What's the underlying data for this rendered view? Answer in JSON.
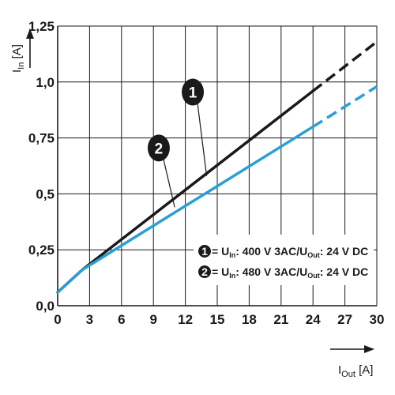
{
  "chart_data": {
    "type": "line",
    "xlabel": {
      "main": "I",
      "sub": "Out",
      "unit": " [A]"
    },
    "ylabel": {
      "main": "I",
      "sub": "In",
      "unit": " [A]"
    },
    "xlim": [
      0,
      30
    ],
    "ylim": [
      0,
      1.25
    ],
    "xticks": [
      0,
      3,
      6,
      9,
      12,
      15,
      18,
      21,
      24,
      27,
      30
    ],
    "xtick_labels": [
      "0",
      "3",
      "6",
      "9",
      "12",
      "15",
      "18",
      "21",
      "24",
      "27",
      "30"
    ],
    "yticks": [
      0,
      0.25,
      0.5,
      0.75,
      1.0,
      1.25
    ],
    "ytick_labels": [
      "0,0",
      "0,25",
      "0,5",
      "0,75",
      "1,0",
      "1,25"
    ],
    "grid": true,
    "legend_position": "lower-right",
    "series": [
      {
        "id": "1",
        "color": "#1a1a1a",
        "solid": {
          "x": [
            0,
            2.3,
            24
          ],
          "y": [
            0.06,
            0.16,
            0.96
          ]
        },
        "dashed": {
          "x": [
            24,
            30
          ],
          "y": [
            0.96,
            1.18
          ]
        },
        "legend": {
          "marker": "1",
          "parts": [
            "= U",
            "In",
            ": 400 V 3AC/U",
            "Out",
            ": 24 V DC"
          ]
        }
      },
      {
        "id": "2",
        "color": "#2a9fd6",
        "solid": {
          "x": [
            0,
            2.3,
            24
          ],
          "y": [
            0.06,
            0.16,
            0.8
          ]
        },
        "dashed": {
          "x": [
            24,
            30
          ],
          "y": [
            0.8,
            0.98
          ]
        },
        "legend": {
          "marker": "2",
          "parts": [
            "= U",
            "In",
            ": 480 V 3AC/U",
            "Out",
            ": 24 V DC"
          ]
        }
      }
    ],
    "annotations": [
      {
        "label": "1",
        "marker_x": 12.7,
        "marker_y": 0.955,
        "target_x": 14.0,
        "target_y": 0.58
      },
      {
        "label": "2",
        "marker_x": 9.5,
        "marker_y": 0.705,
        "target_x": 11.0,
        "target_y": 0.44
      }
    ]
  }
}
